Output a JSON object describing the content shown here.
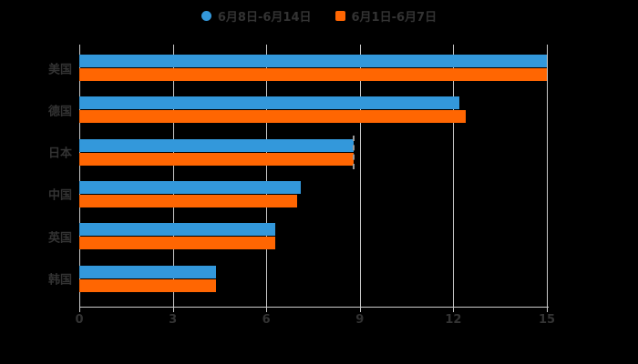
{
  "background": "#000000",
  "text_color": "#333333",
  "grid_color": "#cccccc",
  "axis_color": "#cccccc",
  "pointer_color": "#999999",
  "legend": {
    "items": [
      {
        "label": "6月8日-6月14日",
        "color": "#3398db",
        "marker": "circle"
      },
      {
        "label": "6月1日-6月7日",
        "color": "#ff6602",
        "marker": "square"
      }
    ]
  },
  "chart_data": {
    "type": "bar",
    "orientation": "horizontal",
    "title": "",
    "xlabel": "",
    "ylabel": "",
    "categories": [
      "美国",
      "德国",
      "日本",
      "中国",
      "英国",
      "韩国"
    ],
    "series": [
      {
        "name": "6月8日-6月14日",
        "color": "#3398db",
        "values": [
          15.0,
          12.2,
          8.8,
          7.1,
          6.3,
          4.4
        ]
      },
      {
        "name": "6月1日-6月7日",
        "color": "#ff6602",
        "values": [
          15.0,
          12.4,
          8.8,
          7.0,
          6.3,
          4.4
        ]
      }
    ],
    "xlim": [
      0,
      15
    ],
    "x_ticks": [
      "0",
      "3",
      "6",
      "9",
      "12",
      "15"
    ],
    "grid": true,
    "legend_position": "top",
    "pointer_line": {
      "category": "日本",
      "category_index": 2,
      "value": 8.8,
      "style": "dashed"
    }
  }
}
